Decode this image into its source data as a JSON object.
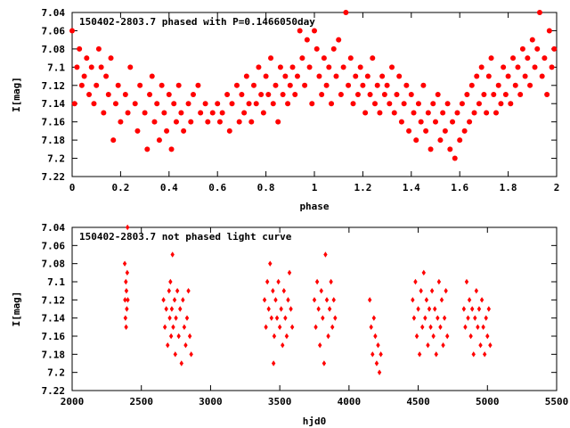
{
  "chart_data": [
    {
      "type": "scatter",
      "title": "150402-2803.7 phased with P=0.1466050day",
      "xlabel": "phase",
      "ylabel": "I[mag]",
      "xlim": [
        0,
        2
      ],
      "ylim": [
        7.04,
        7.22
      ],
      "y_inverted": true,
      "x_ticks": [
        "0",
        "0.2",
        "0.4",
        "0.6",
        "0.8",
        "1",
        "1.2",
        "1.4",
        "1.6",
        "1.8",
        "2"
      ],
      "y_ticks": [
        "7.04",
        "7.06",
        "7.08",
        "7.1",
        "7.12",
        "7.14",
        "7.16",
        "7.18",
        "7.2",
        "7.22"
      ],
      "marker": "filled-circle",
      "color": "#ff0000",
      "points": [
        [
          0.0,
          7.06
        ],
        [
          0.01,
          7.14
        ],
        [
          0.02,
          7.1
        ],
        [
          0.03,
          7.08
        ],
        [
          0.04,
          7.12
        ],
        [
          0.05,
          7.11
        ],
        [
          0.06,
          7.09
        ],
        [
          0.07,
          7.13
        ],
        [
          0.08,
          7.1
        ],
        [
          0.09,
          7.14
        ],
        [
          0.1,
          7.12
        ],
        [
          0.11,
          7.08
        ],
        [
          0.12,
          7.1
        ],
        [
          0.13,
          7.15
        ],
        [
          0.14,
          7.11
        ],
        [
          0.15,
          7.13
        ],
        [
          0.16,
          7.09
        ],
        [
          0.17,
          7.18
        ],
        [
          0.18,
          7.14
        ],
        [
          0.19,
          7.12
        ],
        [
          0.2,
          7.16
        ],
        [
          0.22,
          7.13
        ],
        [
          0.23,
          7.15
        ],
        [
          0.24,
          7.1
        ],
        [
          0.26,
          7.14
        ],
        [
          0.27,
          7.17
        ],
        [
          0.28,
          7.12
        ],
        [
          0.3,
          7.15
        ],
        [
          0.31,
          7.19
        ],
        [
          0.32,
          7.13
        ],
        [
          0.33,
          7.11
        ],
        [
          0.34,
          7.16
        ],
        [
          0.35,
          7.14
        ],
        [
          0.36,
          7.18
        ],
        [
          0.37,
          7.12
        ],
        [
          0.38,
          7.15
        ],
        [
          0.39,
          7.17
        ],
        [
          0.4,
          7.13
        ],
        [
          0.41,
          7.19
        ],
        [
          0.42,
          7.14
        ],
        [
          0.43,
          7.16
        ],
        [
          0.44,
          7.12
        ],
        [
          0.45,
          7.15
        ],
        [
          0.46,
          7.17
        ],
        [
          0.48,
          7.14
        ],
        [
          0.49,
          7.16
        ],
        [
          0.5,
          7.13
        ],
        [
          0.52,
          7.12
        ],
        [
          0.53,
          7.15
        ],
        [
          0.55,
          7.14
        ],
        [
          0.56,
          7.16
        ],
        [
          0.58,
          7.15
        ],
        [
          0.6,
          7.14
        ],
        [
          0.61,
          7.16
        ],
        [
          0.62,
          7.15
        ],
        [
          0.64,
          7.13
        ],
        [
          0.65,
          7.17
        ],
        [
          0.66,
          7.14
        ],
        [
          0.68,
          7.12
        ],
        [
          0.69,
          7.16
        ],
        [
          0.7,
          7.13
        ],
        [
          0.71,
          7.15
        ],
        [
          0.72,
          7.11
        ],
        [
          0.73,
          7.14
        ],
        [
          0.74,
          7.16
        ],
        [
          0.75,
          7.12
        ],
        [
          0.76,
          7.14
        ],
        [
          0.77,
          7.1
        ],
        [
          0.78,
          7.13
        ],
        [
          0.79,
          7.15
        ],
        [
          0.8,
          7.11
        ],
        [
          0.81,
          7.13
        ],
        [
          0.82,
          7.09
        ],
        [
          0.83,
          7.14
        ],
        [
          0.84,
          7.12
        ],
        [
          0.85,
          7.16
        ],
        [
          0.86,
          7.1
        ],
        [
          0.87,
          7.13
        ],
        [
          0.88,
          7.11
        ],
        [
          0.89,
          7.14
        ],
        [
          0.9,
          7.12
        ],
        [
          0.91,
          7.1
        ],
        [
          0.92,
          7.13
        ],
        [
          0.93,
          7.11
        ],
        [
          0.94,
          7.06
        ],
        [
          0.95,
          7.09
        ],
        [
          0.96,
          7.12
        ],
        [
          0.97,
          7.07
        ],
        [
          0.98,
          7.1
        ],
        [
          0.99,
          7.14
        ],
        [
          1.0,
          7.06
        ],
        [
          1.01,
          7.08
        ],
        [
          1.02,
          7.11
        ],
        [
          1.03,
          7.13
        ],
        [
          1.04,
          7.09
        ],
        [
          1.05,
          7.12
        ],
        [
          1.06,
          7.1
        ],
        [
          1.07,
          7.14
        ],
        [
          1.08,
          7.08
        ],
        [
          1.09,
          7.11
        ],
        [
          1.1,
          7.07
        ],
        [
          1.11,
          7.13
        ],
        [
          1.12,
          7.1
        ],
        [
          1.13,
          7.04
        ],
        [
          1.14,
          7.12
        ],
        [
          1.15,
          7.09
        ],
        [
          1.16,
          7.14
        ],
        [
          1.17,
          7.11
        ],
        [
          1.18,
          7.13
        ],
        [
          1.19,
          7.1
        ],
        [
          1.2,
          7.12
        ],
        [
          1.21,
          7.15
        ],
        [
          1.22,
          7.11
        ],
        [
          1.23,
          7.13
        ],
        [
          1.24,
          7.09
        ],
        [
          1.25,
          7.14
        ],
        [
          1.26,
          7.12
        ],
        [
          1.27,
          7.15
        ],
        [
          1.28,
          7.11
        ],
        [
          1.29,
          7.13
        ],
        [
          1.3,
          7.12
        ],
        [
          1.31,
          7.14
        ],
        [
          1.32,
          7.1
        ],
        [
          1.33,
          7.15
        ],
        [
          1.34,
          7.13
        ],
        [
          1.35,
          7.11
        ],
        [
          1.36,
          7.16
        ],
        [
          1.37,
          7.14
        ],
        [
          1.38,
          7.12
        ],
        [
          1.39,
          7.17
        ],
        [
          1.4,
          7.13
        ],
        [
          1.41,
          7.15
        ],
        [
          1.42,
          7.18
        ],
        [
          1.43,
          7.14
        ],
        [
          1.44,
          7.16
        ],
        [
          1.45,
          7.12
        ],
        [
          1.46,
          7.17
        ],
        [
          1.47,
          7.15
        ],
        [
          1.48,
          7.19
        ],
        [
          1.49,
          7.14
        ],
        [
          1.5,
          7.16
        ],
        [
          1.51,
          7.13
        ],
        [
          1.52,
          7.18
        ],
        [
          1.53,
          7.15
        ],
        [
          1.54,
          7.17
        ],
        [
          1.55,
          7.14
        ],
        [
          1.56,
          7.19
        ],
        [
          1.57,
          7.16
        ],
        [
          1.58,
          7.2
        ],
        [
          1.59,
          7.15
        ],
        [
          1.6,
          7.18
        ],
        [
          1.61,
          7.14
        ],
        [
          1.62,
          7.17
        ],
        [
          1.63,
          7.13
        ],
        [
          1.64,
          7.16
        ],
        [
          1.65,
          7.12
        ],
        [
          1.66,
          7.15
        ],
        [
          1.67,
          7.11
        ],
        [
          1.68,
          7.14
        ],
        [
          1.69,
          7.1
        ],
        [
          1.7,
          7.13
        ],
        [
          1.71,
          7.15
        ],
        [
          1.72,
          7.11
        ],
        [
          1.73,
          7.09
        ],
        [
          1.74,
          7.13
        ],
        [
          1.75,
          7.15
        ],
        [
          1.76,
          7.12
        ],
        [
          1.77,
          7.14
        ],
        [
          1.78,
          7.1
        ],
        [
          1.79,
          7.13
        ],
        [
          1.8,
          7.11
        ],
        [
          1.81,
          7.14
        ],
        [
          1.82,
          7.09
        ],
        [
          1.83,
          7.12
        ],
        [
          1.84,
          7.1
        ],
        [
          1.85,
          7.13
        ],
        [
          1.86,
          7.08
        ],
        [
          1.87,
          7.11
        ],
        [
          1.88,
          7.09
        ],
        [
          1.89,
          7.12
        ],
        [
          1.9,
          7.07
        ],
        [
          1.91,
          7.1
        ],
        [
          1.92,
          7.08
        ],
        [
          1.93,
          7.04
        ],
        [
          1.94,
          7.11
        ],
        [
          1.95,
          7.09
        ],
        [
          1.96,
          7.13
        ],
        [
          1.97,
          7.06
        ],
        [
          1.98,
          7.1
        ],
        [
          1.99,
          7.08
        ]
      ]
    },
    {
      "type": "scatter",
      "title": "150402-2803.7 not phased light curve",
      "xlabel": "hjd0",
      "ylabel": "I[mag]",
      "xlim": [
        2000,
        5500
      ],
      "ylim": [
        7.04,
        7.22
      ],
      "y_inverted": true,
      "x_ticks": [
        "2000",
        "2500",
        "3000",
        "3500",
        "4000",
        "4500",
        "5000",
        "5500"
      ],
      "y_ticks": [
        "7.04",
        "7.06",
        "7.08",
        "7.1",
        "7.12",
        "7.14",
        "7.16",
        "7.18",
        "7.2",
        "7.22"
      ],
      "marker": "diamond",
      "color": "#ff0000",
      "points": [
        [
          2380,
          7.08
        ],
        [
          2382,
          7.12
        ],
        [
          2385,
          7.14
        ],
        [
          2388,
          7.1
        ],
        [
          2390,
          7.15
        ],
        [
          2392,
          7.11
        ],
        [
          2395,
          7.13
        ],
        [
          2398,
          7.09
        ],
        [
          2400,
          7.04
        ],
        [
          2402,
          7.12
        ],
        [
          2660,
          7.12
        ],
        [
          2670,
          7.15
        ],
        [
          2680,
          7.13
        ],
        [
          2690,
          7.17
        ],
        [
          2700,
          7.11
        ],
        [
          2705,
          7.14
        ],
        [
          2710,
          7.1
        ],
        [
          2715,
          7.16
        ],
        [
          2720,
          7.13
        ],
        [
          2725,
          7.07
        ],
        [
          2730,
          7.15
        ],
        [
          2740,
          7.12
        ],
        [
          2745,
          7.18
        ],
        [
          2750,
          7.14
        ],
        [
          2760,
          7.11
        ],
        [
          2770,
          7.16
        ],
        [
          2780,
          7.13
        ],
        [
          2790,
          7.19
        ],
        [
          2800,
          7.12
        ],
        [
          2810,
          7.15
        ],
        [
          2820,
          7.17
        ],
        [
          2830,
          7.14
        ],
        [
          2840,
          7.11
        ],
        [
          2850,
          7.16
        ],
        [
          2860,
          7.18
        ],
        [
          3390,
          7.12
        ],
        [
          3400,
          7.15
        ],
        [
          3410,
          7.1
        ],
        [
          3420,
          7.13
        ],
        [
          3430,
          7.08
        ],
        [
          3440,
          7.14
        ],
        [
          3450,
          7.11
        ],
        [
          3455,
          7.19
        ],
        [
          3460,
          7.16
        ],
        [
          3470,
          7.12
        ],
        [
          3480,
          7.14
        ],
        [
          3490,
          7.1
        ],
        [
          3500,
          7.15
        ],
        [
          3510,
          7.13
        ],
        [
          3520,
          7.17
        ],
        [
          3530,
          7.11
        ],
        [
          3540,
          7.14
        ],
        [
          3550,
          7.16
        ],
        [
          3560,
          7.12
        ],
        [
          3570,
          7.09
        ],
        [
          3580,
          7.13
        ],
        [
          3590,
          7.15
        ],
        [
          3750,
          7.12
        ],
        [
          3760,
          7.15
        ],
        [
          3770,
          7.1
        ],
        [
          3780,
          7.13
        ],
        [
          3790,
          7.17
        ],
        [
          3800,
          7.11
        ],
        [
          3810,
          7.14
        ],
        [
          3820,
          7.19
        ],
        [
          3830,
          7.07
        ],
        [
          3840,
          7.12
        ],
        [
          3850,
          7.16
        ],
        [
          3860,
          7.13
        ],
        [
          3870,
          7.1
        ],
        [
          3880,
          7.15
        ],
        [
          3890,
          7.12
        ],
        [
          3900,
          7.14
        ],
        [
          4150,
          7.12
        ],
        [
          4160,
          7.15
        ],
        [
          4170,
          7.18
        ],
        [
          4180,
          7.14
        ],
        [
          4190,
          7.16
        ],
        [
          4200,
          7.19
        ],
        [
          4210,
          7.17
        ],
        [
          4220,
          7.2
        ],
        [
          4230,
          7.18
        ],
        [
          4460,
          7.12
        ],
        [
          4470,
          7.14
        ],
        [
          4480,
          7.1
        ],
        [
          4490,
          7.16
        ],
        [
          4500,
          7.13
        ],
        [
          4510,
          7.18
        ],
        [
          4520,
          7.11
        ],
        [
          4530,
          7.15
        ],
        [
          4540,
          7.09
        ],
        [
          4550,
          7.14
        ],
        [
          4560,
          7.12
        ],
        [
          4570,
          7.17
        ],
        [
          4580,
          7.13
        ],
        [
          4590,
          7.15
        ],
        [
          4600,
          7.11
        ],
        [
          4610,
          7.16
        ],
        [
          4620,
          7.13
        ],
        [
          4630,
          7.18
        ],
        [
          4640,
          7.14
        ],
        [
          4650,
          7.1
        ],
        [
          4660,
          7.15
        ],
        [
          4670,
          7.12
        ],
        [
          4680,
          7.17
        ],
        [
          4690,
          7.14
        ],
        [
          4700,
          7.11
        ],
        [
          4710,
          7.16
        ],
        [
          4830,
          7.13
        ],
        [
          4840,
          7.15
        ],
        [
          4850,
          7.1
        ],
        [
          4860,
          7.14
        ],
        [
          4870,
          7.12
        ],
        [
          4880,
          7.16
        ],
        [
          4890,
          7.13
        ],
        [
          4900,
          7.18
        ],
        [
          4910,
          7.14
        ],
        [
          4920,
          7.11
        ],
        [
          4930,
          7.15
        ],
        [
          4940,
          7.13
        ],
        [
          4950,
          7.17
        ],
        [
          4960,
          7.12
        ],
        [
          4970,
          7.15
        ],
        [
          4980,
          7.18
        ],
        [
          4990,
          7.14
        ],
        [
          5000,
          7.16
        ],
        [
          5010,
          7.13
        ],
        [
          5020,
          7.17
        ]
      ]
    }
  ]
}
